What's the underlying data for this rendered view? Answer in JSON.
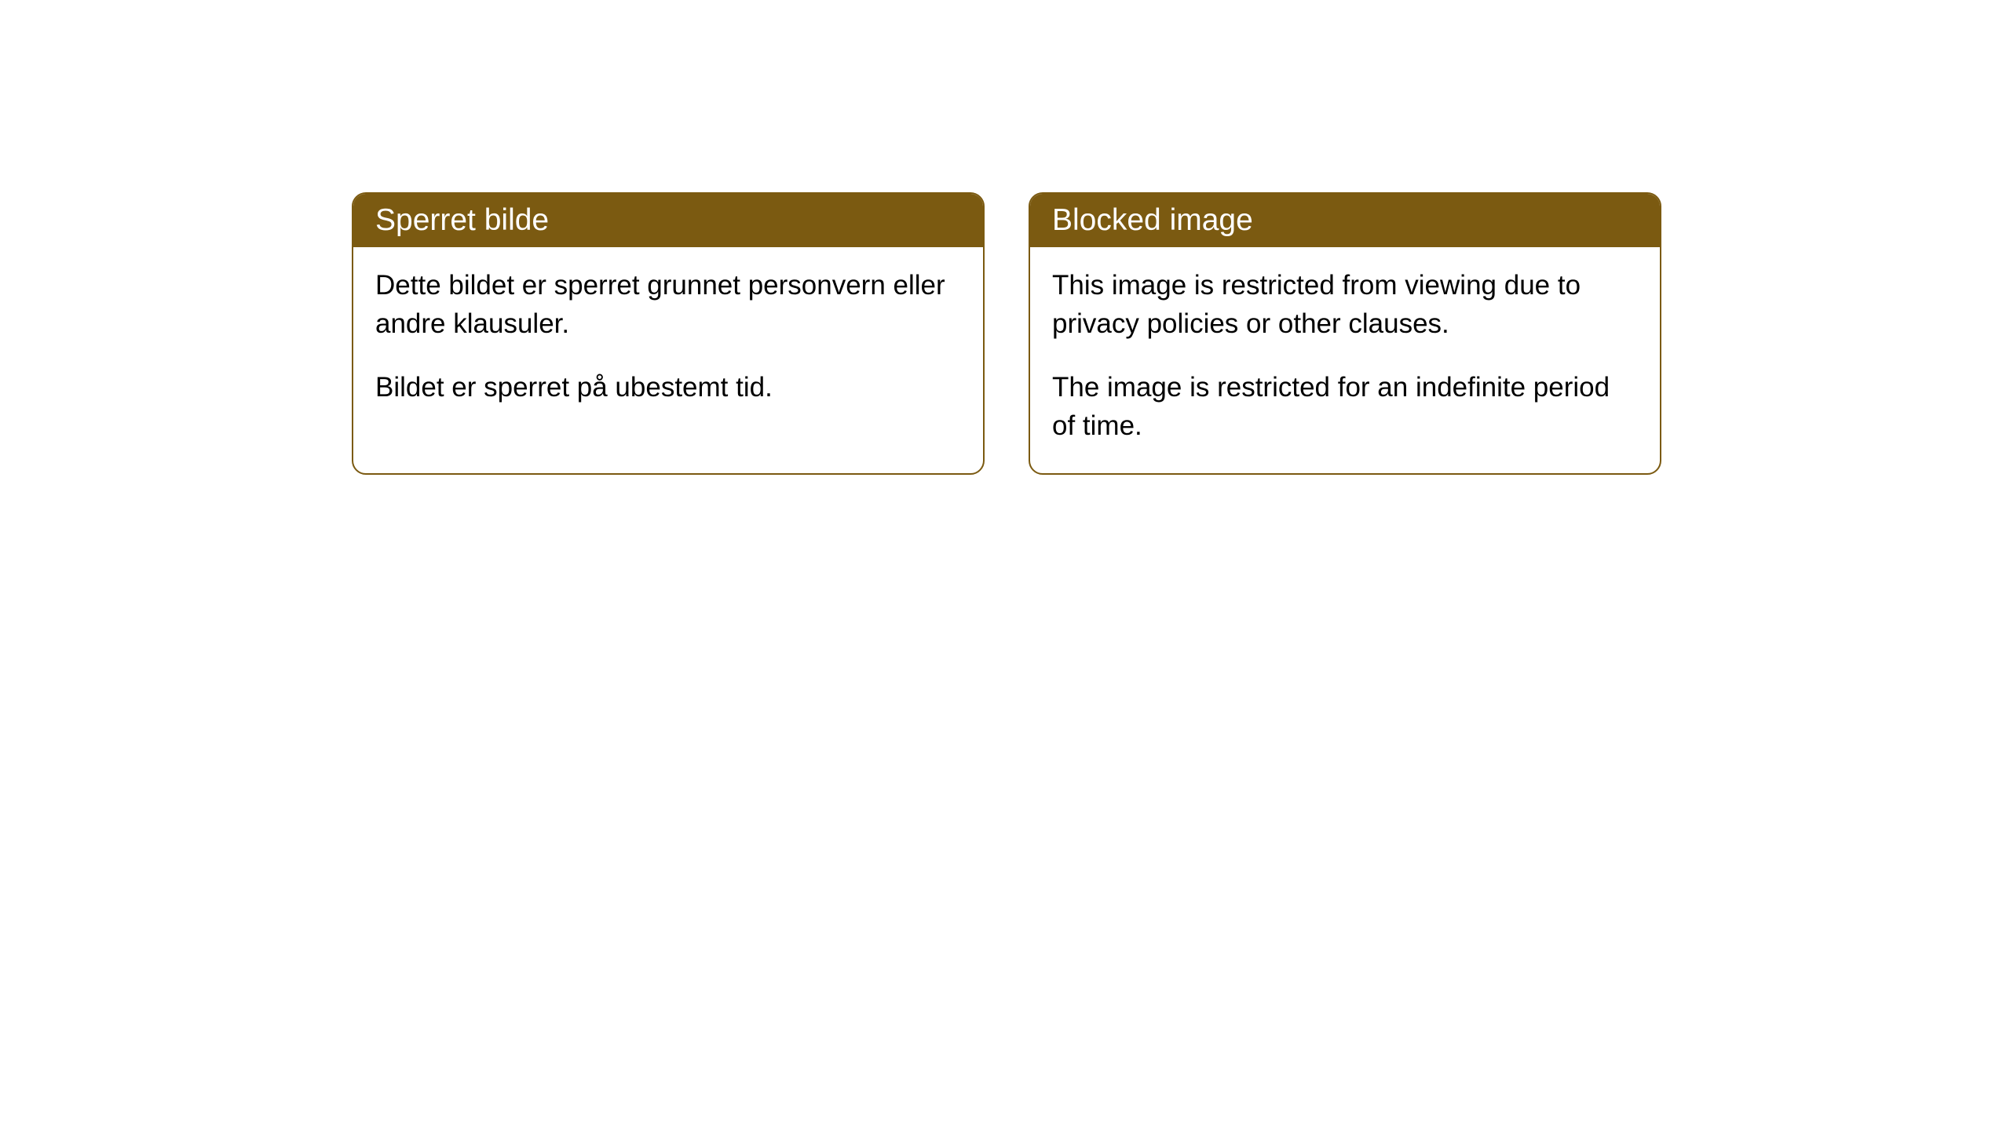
{
  "cards": [
    {
      "title": "Sperret bilde",
      "paragraph1": "Dette bildet er sperret grunnet personvern eller andre klausuler.",
      "paragraph2": "Bildet er sperret på ubestemt tid."
    },
    {
      "title": "Blocked image",
      "paragraph1": "This image is restricted from viewing due to privacy policies or other clauses.",
      "paragraph2": "The image is restricted for an indefinite period of time."
    }
  ],
  "style": {
    "header_bg": "#7b5a11",
    "header_text_color": "#ffffff",
    "border_color": "#7b5a11",
    "body_bg": "#ffffff",
    "body_text_color": "#000000",
    "border_radius": 18,
    "title_fontsize": 39,
    "body_fontsize": 35
  }
}
